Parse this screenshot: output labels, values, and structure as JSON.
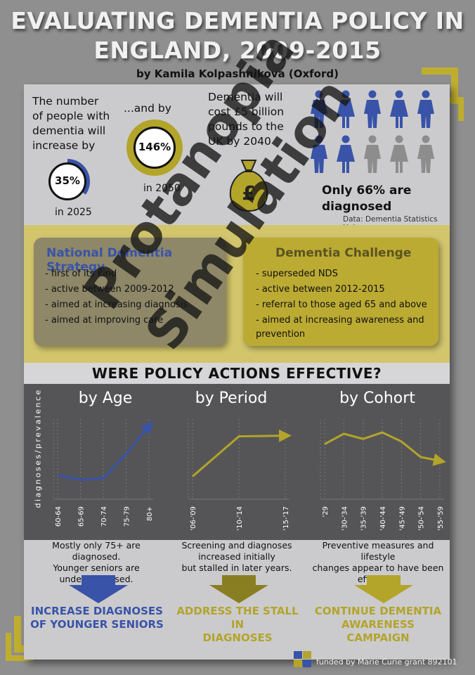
{
  "header": {
    "title_line1": "EVALUATING DEMENTIA POLICY IN",
    "title_line2": "ENGLAND, 2009-2015",
    "author": "by Kamila Kolpashnikova (Oxford)"
  },
  "stats": {
    "increase_text": [
      "The number",
      "of people with",
      "dementia will",
      "increase by"
    ],
    "pct_35": "35%",
    "year_2025": "in 2025",
    "and_by": "...and by",
    "pct_146": "146%",
    "year_2050": "in 2050",
    "cost_text": [
      "Dementia will",
      "cost £5 billion",
      "pounds to the",
      "UK by 2040"
    ],
    "diagnosed": [
      "Only 66% are",
      "diagnosed"
    ],
    "source": "Data: Dementia Statistics Hub"
  },
  "strategies": {
    "nds": {
      "title": "National Dementia Strategy",
      "bullets": [
        "- first of its kind",
        "- active between 2009-2012",
        "- aimed at increasing diagnosis",
        "- aimed at improving care"
      ]
    },
    "challenge": {
      "title": "Dementia Challenge",
      "bullets": [
        "- superseded NDS",
        "- active between 2012-2015",
        "- referral to those aged 65 and above",
        "- aimed at increasing awareness and",
        "prevention"
      ]
    }
  },
  "question": "WERE POLICY ACTIONS EFFECTIVE?",
  "charts": {
    "ylabel": "diagnoses/prevalence",
    "age": {
      "title": "by Age",
      "ticks": [
        "60-64",
        "65-69",
        "70-74",
        "75-79",
        "80+"
      ]
    },
    "period": {
      "title": "by Period",
      "ticks": [
        "'06-'09",
        "'10-'14",
        "'15-'17"
      ]
    },
    "cohort": {
      "title": "by Cohort",
      "ticks": [
        "'29",
        "'30-'34",
        "'35-'39",
        "'40-'44",
        "'45-'49",
        "'50-'54",
        "'55-'59"
      ]
    }
  },
  "findings": {
    "age": [
      "Mostly only 75+ are diagnosed.",
      "Younger seniors are",
      "underdiagnosed."
    ],
    "period": [
      "Screening and diagnoses",
      "increased initially",
      "but stalled in later years."
    ],
    "cohort": [
      "Preventive measures and lifestyle",
      "changes appear to have been",
      "effective."
    ]
  },
  "actions": {
    "age": [
      "INCREASE DIAGNOSES",
      "OF YOUNGER SENIORS"
    ],
    "period": [
      "ADDRESS THE STALL IN",
      "DIAGNOSES"
    ],
    "cohort": [
      "CONTINUE DEMENTIA",
      "AWARENESS CAMPAIGN"
    ]
  },
  "watermark": [
    "Protanopia",
    "Simulation"
  ],
  "funded": "funded by Marie Curie grant 892101",
  "colors": {
    "blue": "#3953a8",
    "olive": "#b3a42a",
    "yellow": "#d2c56c",
    "dark": "#555557",
    "panel": "#cbcbcd"
  }
}
